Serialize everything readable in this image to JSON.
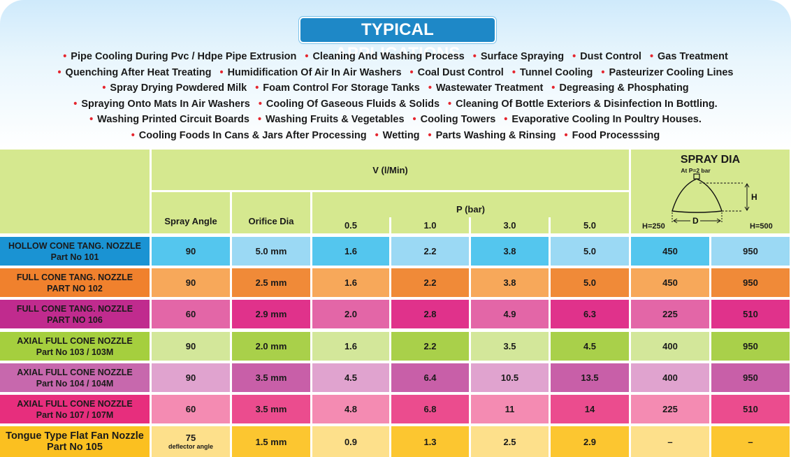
{
  "header": {
    "title": "TYPICAL APPLICATIONS"
  },
  "applications": [
    [
      "Pipe Cooling During Pvc / Hdpe Pipe Extrusion",
      "Cleaning And Washing Process",
      "Surface Spraying",
      "Dust Control",
      "Gas Treatment"
    ],
    [
      "Quenching After Heat Treating",
      "Humidification Of Air In Air Washers",
      "Coal Dust Control",
      "Tunnel Cooling",
      "Pasteurizer Cooling Lines"
    ],
    [
      "Spray Drying Powdered Milk",
      "Foam Control For Storage Tanks",
      "Wastewater Treatment",
      "Degreasing & Phosphating"
    ],
    [
      "Spraying Onto Mats In Air Washers",
      "Cooling Of Gaseous Fluids & Solids",
      "Cleaning Of Bottle Exteriors & Disinfection In Bottling."
    ],
    [
      "Washing Printed Circuit Boards",
      "Washing Fruits & Vegetables",
      "Cooling Towers",
      "Evaporative Cooling In Poultry Houses."
    ],
    [
      "Cooling Foods In Cans & Jars After Processing",
      "Wetting",
      "Parts Washing & Rinsing",
      "Food Processsing"
    ]
  ],
  "table": {
    "v_label": "V (l/Min)",
    "p_label": "P (bar)",
    "spray_angle": "Spray Angle",
    "orifice_dia": "Orifice Dia",
    "pressures": [
      "0.5",
      "1.0",
      "3.0",
      "5.0"
    ],
    "spray_dia": {
      "title": "SPRAY DIA",
      "subtitle": "At P=2 bar",
      "h_mark": "H",
      "d_mark": "D",
      "h250": "H=250",
      "h500": "H=500"
    },
    "rows": [
      {
        "name": "HOLLOW CONE TANG. NOZZLE",
        "part": "Part No 101",
        "angle": "90",
        "angle_note": "",
        "orifice": "5.0 mm",
        "flows": [
          "1.6",
          "2.2",
          "3.8",
          "5.0"
        ],
        "d250": "450",
        "d500": "950",
        "label_bg": "#1a93d3",
        "light": "#54c6ee",
        "dark": "#9bd9f4"
      },
      {
        "name": "FULL CONE TANG. NOZZLE",
        "part": "PART NO 102",
        "angle": "90",
        "angle_note": "",
        "orifice": "2.5 mm",
        "flows": [
          "1.6",
          "2.2",
          "3.8",
          "5.0"
        ],
        "d250": "450",
        "d500": "950",
        "label_bg": "#f0812d",
        "light": "#f7a85a",
        "dark": "#f08a38"
      },
      {
        "name": "FULL CONE TANG. NOZZLE",
        "part": "PART NO 106",
        "angle": "60",
        "angle_note": "",
        "orifice": "2.9 mm",
        "flows": [
          "2.0",
          "2.8",
          "4.9",
          "6.3"
        ],
        "d250": "225",
        "d500": "510",
        "label_bg": "#c02b8e",
        "light": "#e366a7",
        "dark": "#e0328b"
      },
      {
        "name": "AXIAL FULL CONE NOZZLE",
        "part": "Part No 103 / 103M",
        "angle": "90",
        "angle_note": "",
        "orifice": "2.0 mm",
        "flows": [
          "1.6",
          "2.2",
          "3.5",
          "4.5"
        ],
        "d250": "400",
        "d500": "950",
        "label_bg": "#a5cf3e",
        "light": "#d3e79a",
        "dark": "#a9d04a"
      },
      {
        "name": "AXIAL FULL CONE NOZZLE",
        "part": "Part No 104 / 104M",
        "angle": "90",
        "angle_note": "",
        "orifice": "3.5 mm",
        "flows": [
          "4.5",
          "6.4",
          "10.5",
          "13.5"
        ],
        "d250": "400",
        "d500": "950",
        "label_bg": "#c768ad",
        "light": "#e0a3cf",
        "dark": "#c85fa8"
      },
      {
        "name": "AXIAL FULL CONE NOZZLE",
        "part": "Part No 107 / 107M",
        "angle": "60",
        "angle_note": "",
        "orifice": "3.5 mm",
        "flows": [
          "4.8",
          "6.8",
          "11",
          "14"
        ],
        "d250": "225",
        "d500": "510",
        "label_bg": "#e72e7d",
        "light": "#f48bb2",
        "dark": "#eb4c8e"
      },
      {
        "name": "Tongue Type Flat Fan Nozzle",
        "part": "Part No 105",
        "angle": "75",
        "angle_note": "deflector angle",
        "orifice": "1.5 mm",
        "flows": [
          "0.9",
          "1.3",
          "2.5",
          "2.9"
        ],
        "d250": "–",
        "d500": "–",
        "label_bg": "#fbc020",
        "light": "#fde08b",
        "dark": "#fcc630"
      }
    ]
  }
}
